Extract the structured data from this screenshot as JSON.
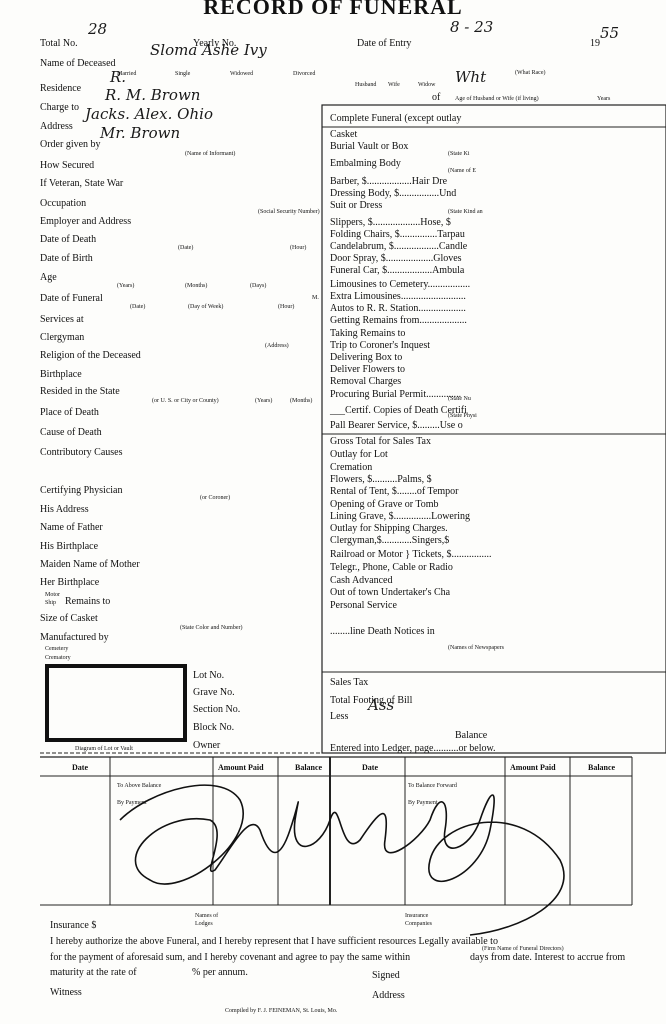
{
  "header": {
    "title": "RECORD OF FUNERAL"
  },
  "fields": [
    {
      "label": "Total No.",
      "value": "28"
    },
    {
      "label": "Yearly No."
    },
    {
      "label": "Date of Entry",
      "value": "8 - 23"
    },
    {
      "label": "19",
      "value": "55"
    },
    {
      "label": "Name of Deceased",
      "value": "Sloma Ashe Ivy"
    },
    {
      "label": "Residence",
      "value": "R."
    },
    {
      "label": "Charge to",
      "value": "R. M. Brown"
    },
    {
      "label": "Address",
      "value": "Jacks. Alex. Ohio"
    },
    {
      "label": "Order given by",
      "value": "Mr. Brown"
    },
    {
      "label": "How Secured"
    },
    {
      "label": "If Veteran, State War"
    },
    {
      "label": "Occupation"
    },
    {
      "label": "Employer and Address"
    },
    {
      "label": "Date of Death"
    },
    {
      "label": "Date of Birth"
    },
    {
      "label": "Age"
    },
    {
      "label": "Date of Funeral"
    },
    {
      "label": "Services at"
    },
    {
      "label": "Clergyman"
    },
    {
      "label": "Religion of the Deceased"
    },
    {
      "label": "Birthplace"
    },
    {
      "label": "Resided in the State"
    },
    {
      "label": "Place of Death"
    },
    {
      "label": "Cause of Death"
    },
    {
      "label": "Contributory Causes"
    },
    {
      "label": "Certifying Physician"
    },
    {
      "label": "His Address"
    },
    {
      "label": "Name of Father"
    },
    {
      "label": "His Birthplace"
    },
    {
      "label": "Maiden Name of Mother"
    },
    {
      "label": "Her Birthplace"
    },
    {
      "label": "Remains to"
    },
    {
      "label": "Size of Casket"
    },
    {
      "label": "Manufactured by"
    },
    {
      "label": "Lot No."
    },
    {
      "label": "Grave No."
    },
    {
      "label": "Section No."
    },
    {
      "label": "Block No."
    },
    {
      "label": "Owner"
    },
    {
      "label": "of",
      "value": "Wht"
    }
  ],
  "sublabels": [
    "Married",
    "Single",
    "Widowed",
    "Divorced",
    "(What Race)",
    "Husband",
    "Wife",
    "Widow",
    "Age of Husband or Wife (if living)",
    "Years",
    "(Name of Informant)",
    "(Social Security Number)",
    "(Date)",
    "(Hour)",
    "(Years)",
    "(Months)",
    "(Days)",
    "(Date)",
    "(Day of Week)",
    "(Hour)",
    "(Address)",
    "(or U. S. or City or County)",
    "(Years)",
    "(Months)",
    "(or Coroner)",
    "(State Color and Number)",
    "Diagram of Lot or Vault",
    "Motor",
    "Ship",
    "Cemetery",
    "Crematory",
    "M."
  ],
  "charges": {
    "items": [
      "Complete Funeral (except outlay",
      "Casket",
      "Burial Vault or Box",
      "(State Ki",
      "Embalming Body",
      "(Name of E",
      "Barber, $..................Hair Dre",
      "Dressing Body, $................Und",
      "Suit or Dress",
      "(State Kind an",
      "Slippers, $...................Hose, $",
      "Folding Chairs, $...............Tarpau",
      "Candelabrum, $..................Candle",
      "Door Spray, $...................Gloves",
      "Funeral Car, $..................Ambula",
      "Limousines to Cemetery.................",
      "Extra Limousines..........................",
      "Autos to R. R. Station...................",
      "Getting Remains from...................",
      "Taking Remains to",
      "Trip to Coroner's Inquest",
      "Delivering Box to",
      "Deliver Flowers to",
      "Removal Charges",
      "Procuring Burial Permit..............",
      "(State Nu",
      "___Certif. Copies of Death Certifi",
      "(State Physi",
      "Pall Bearer Service, $.........Use o",
      "Gross Total for Sales Tax",
      "Outlay for Lot",
      "Cremation",
      "Flowers, $..........Palms, $",
      "Rental of Tent, $........of Tempor",
      "Opening of Grave or Tomb",
      "Lining Grave, $...............Lowering",
      "Outlay for Shipping Charges.",
      "Clergyman,$............Singers,$",
      "Railroad or Motor } Tickets, $................",
      "Telegr., Phone, Cable or Radio",
      "Cash Advanced",
      "Out of town Undertaker's Cha",
      "Personal Service",
      "........line Death Notices in",
      "(Names of Newspapers",
      "Sales Tax",
      "Total Footing of Bill",
      "Less",
      "Balance",
      "Entered into Ledger, page..........or below."
    ],
    "less_value": "Ass"
  },
  "ledger": {
    "headers": [
      "Date",
      "Amount Paid",
      "Balance",
      "Date",
      "Amount Paid",
      "Balance"
    ],
    "rows": [
      "To Above Balance",
      "By Payment",
      "To Balance Forward",
      "By Payment"
    ]
  },
  "footer": [
    "Insurance $",
    "Names of",
    "Lodges",
    "Insurance",
    "Companies",
    "I hereby authorize the above Funeral, and I hereby represent that I have sufficient resources Legally available to",
    "(Firm Name of Funeral Directors)",
    "for the payment of aforesaid sum, and I hereby covenant and agree to pay the same within",
    "days from date.  Interest to accrue from",
    "maturity at the rate of",
    "% per annum.",
    "Signed",
    "Witness",
    "Address",
    "Compiled by F. J. FEINEMAN, St. Louis, Mo."
  ]
}
